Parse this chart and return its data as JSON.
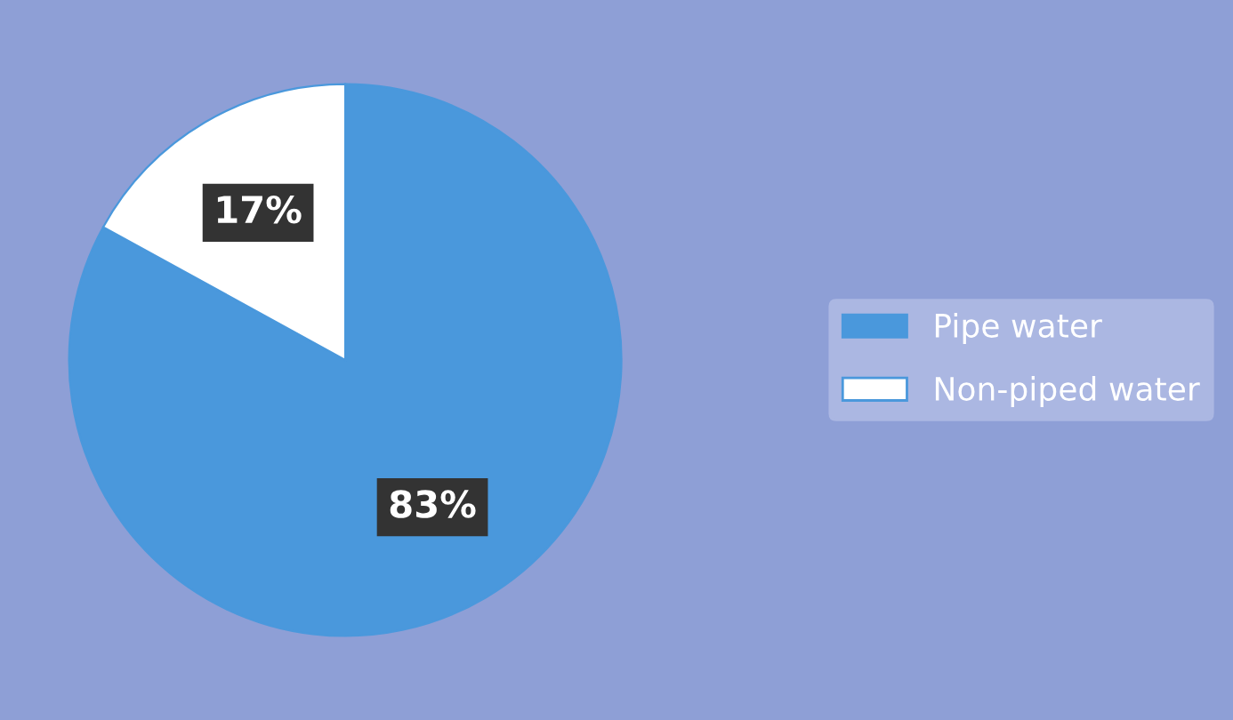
{
  "chart_data": {
    "type": "pie",
    "categories": [
      "Pipe water",
      "Non-piped water"
    ],
    "values": [
      83,
      17
    ],
    "colors": [
      "#4a98dc",
      "#ffffff"
    ],
    "value_labels": [
      "83%",
      "17%"
    ],
    "legend": "right"
  }
}
